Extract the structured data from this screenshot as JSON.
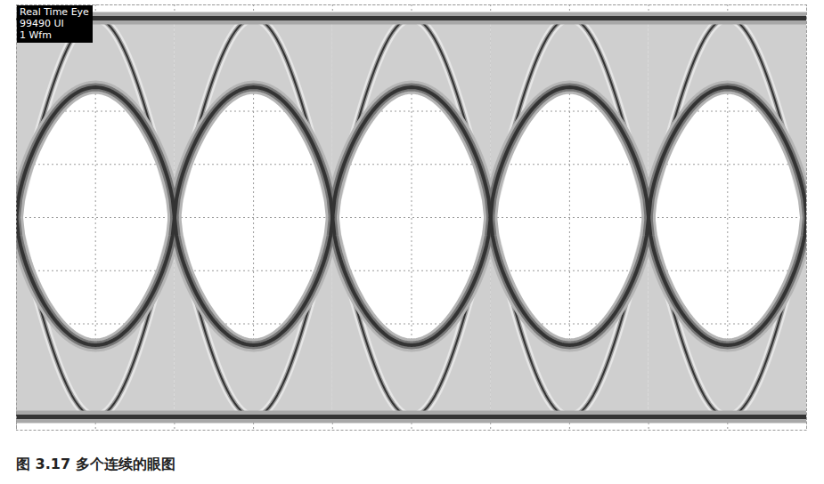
{
  "chart_data": {
    "type": "eye",
    "title": "图 3.17 多个连续的眼图",
    "annotations": [
      "Real Time Eye",
      "99490 UI",
      "1 Wfm"
    ],
    "crossings": [
      0,
      2,
      4,
      6,
      8,
      10
    ],
    "crossing_level": 4,
    "high_level": 7.75,
    "low_level": 0.25,
    "eye_top": 6.45,
    "eye_bottom": 1.6,
    "xlim": [
      0,
      10
    ],
    "ylim": [
      0,
      8
    ],
    "xticks": [
      0,
      1,
      2,
      3,
      4,
      5,
      6,
      7,
      8,
      9,
      10
    ],
    "yticks": [
      0,
      1,
      2,
      3,
      4,
      5,
      6,
      7,
      8
    ],
    "grid": true,
    "tick_labels": false,
    "color": "#333333"
  }
}
